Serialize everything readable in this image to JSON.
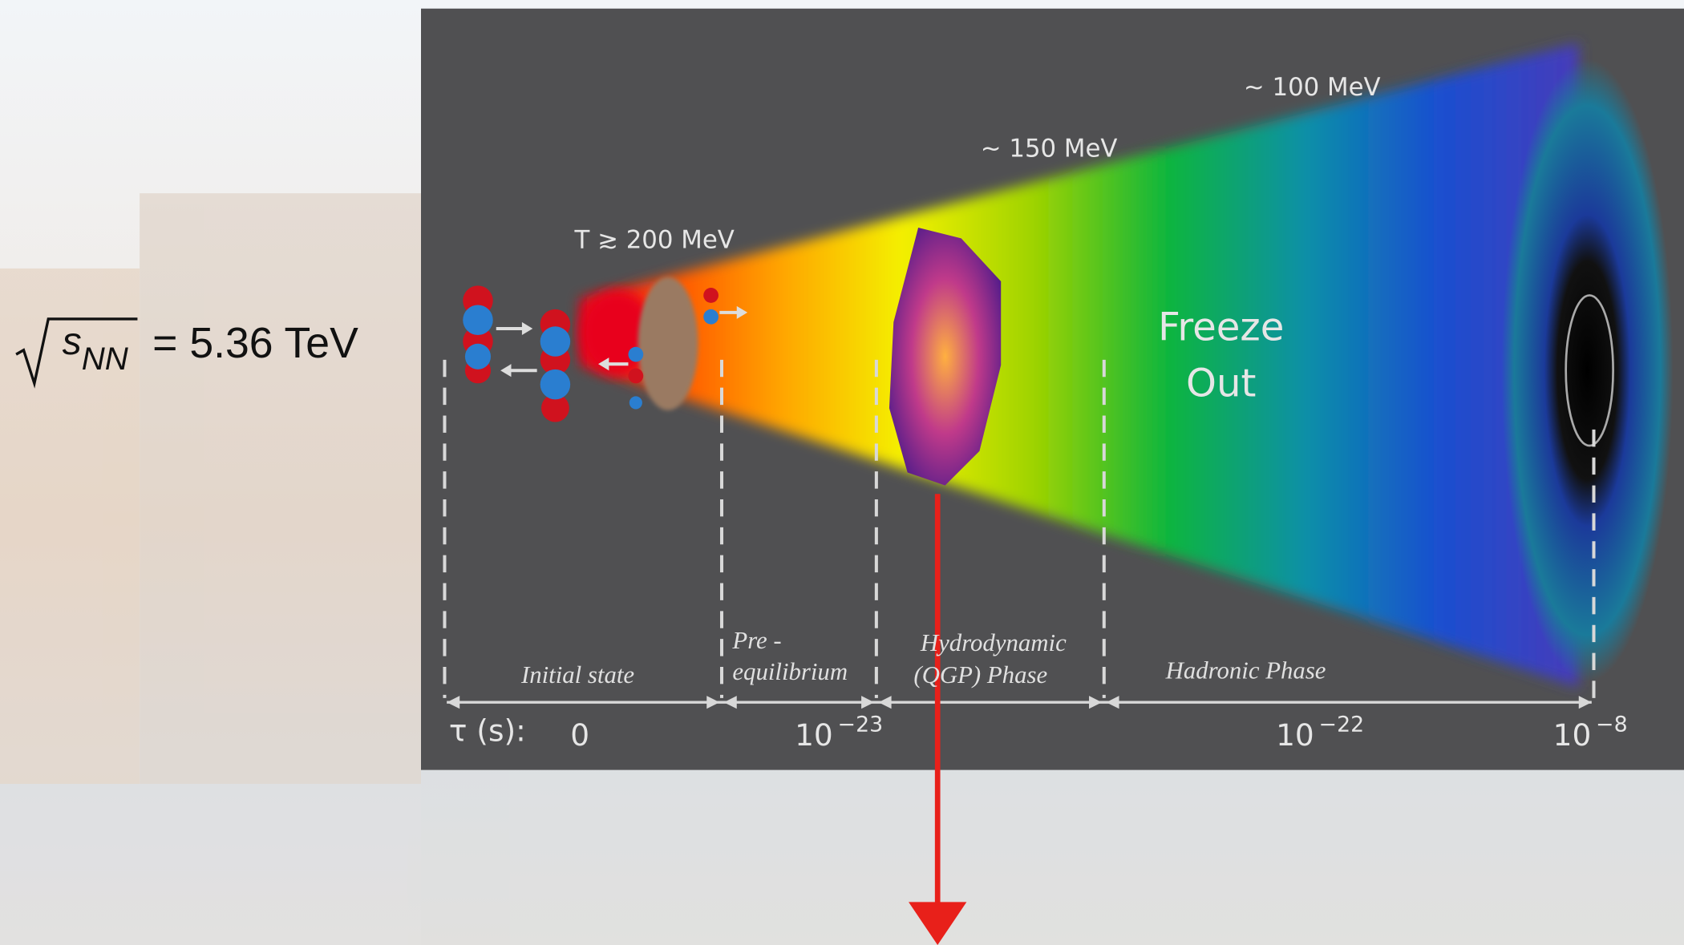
{
  "formula": {
    "radicand": "s",
    "subscript": "NN",
    "value": "= 5.36 TeV"
  },
  "temperatures": [
    "T ≳ 200 MeV",
    "~ 150 MeV",
    "~ 100 MeV"
  ],
  "freeze_out": [
    "Freeze",
    "Out"
  ],
  "phases": [
    {
      "lines": [
        "Initial state"
      ]
    },
    {
      "lines": [
        "Pre -",
        "equilibrium"
      ]
    },
    {
      "lines": [
        "Hydrodynamic",
        "(QGP) Phase"
      ]
    },
    {
      "lines": [
        "Hadronic Phase"
      ]
    }
  ],
  "time_axis": {
    "label": "τ (s):",
    "ticks": [
      {
        "base": "0"
      },
      {
        "base": "10",
        "exponent": "−23"
      },
      {
        "base": "10",
        "exponent": "−22"
      },
      {
        "base": "10",
        "exponent": "−8"
      }
    ]
  }
}
